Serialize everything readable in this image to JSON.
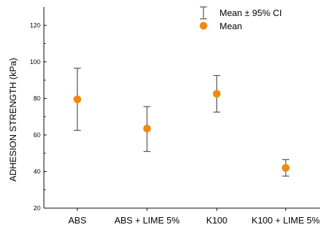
{
  "chart_data": {
    "type": "scatter",
    "ylabel": "ADHESION STRENGTH (kPa)",
    "xlabel": "",
    "categories": [
      "ABS",
      "ABS + LIME 5%",
      "K100",
      "K100 + LIME 5%"
    ],
    "series": [
      {
        "name": "Mean",
        "values": [
          79.5,
          63.5,
          82.5,
          42.0
        ],
        "ci_lower": [
          62.5,
          51.0,
          72.5,
          37.5
        ],
        "ci_upper": [
          96.5,
          75.5,
          92.5,
          46.5
        ],
        "color": "#f08a0e"
      }
    ],
    "error_bar_label": "Mean ± 95% CI",
    "error_bar_color": "#5a4a42",
    "ylim": [
      20,
      130
    ],
    "yticks": [
      "20",
      "40",
      "60",
      "80",
      "100",
      "120"
    ],
    "grid": false,
    "legend_position": "top-right"
  }
}
